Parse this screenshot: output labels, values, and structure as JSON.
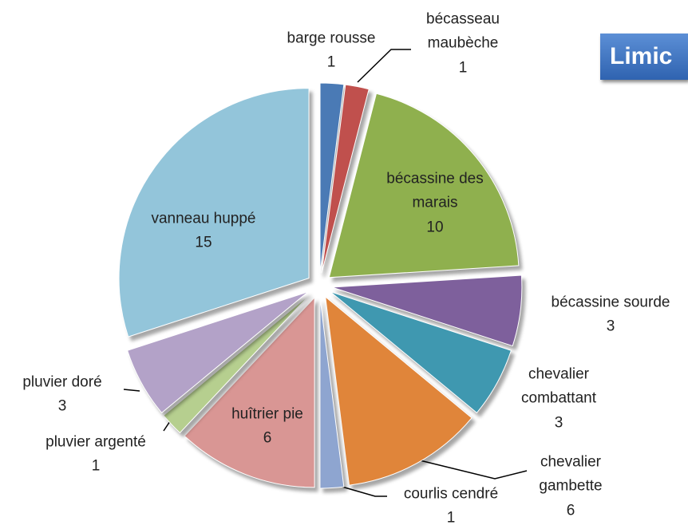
{
  "chart_data": {
    "type": "pie",
    "title": "Limic",
    "categories": [
      "barge rousse",
      "bécasseau maubèche",
      "bécassine des marais",
      "bécassine sourde",
      "chevalier combattant",
      "chevalier gambette",
      "courlis cendré",
      "huîtrier pie",
      "pluvier argenté",
      "pluvier doré",
      "vanneau huppé"
    ],
    "values": [
      1,
      1,
      10,
      3,
      3,
      6,
      1,
      6,
      1,
      3,
      15
    ],
    "colors": [
      "#4a7ab5",
      "#c0504d",
      "#8fb04e",
      "#7e609c",
      "#3f98b0",
      "#e0853a",
      "#8ea5d0",
      "#d99694",
      "#b6cf8f",
      "#b3a2c8",
      "#93c5da"
    ]
  }
}
